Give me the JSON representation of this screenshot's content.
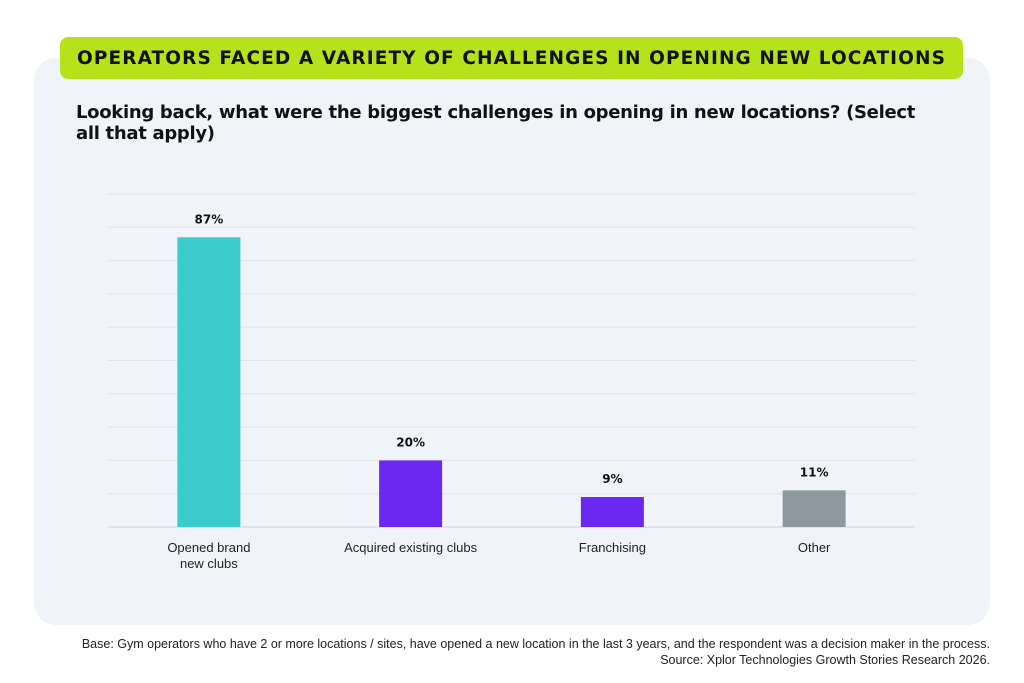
{
  "banner": {
    "title": "OPERATORS FACED A VARIETY OF CHALLENGES IN OPENING NEW LOCATIONS"
  },
  "question": {
    "text": "Looking back, what were the biggest challenges in opening in new locations? (Select all that apply)"
  },
  "footnote": {
    "base": "Base: Gym operators who have 2 or more locations / sites, have opened a new location in the last 3 years, and the respondent was a decision maker in the process.",
    "source": "Source: Xplor Technologies Growth Stories Research 2026."
  },
  "colors": {
    "banner": "#b6e21c",
    "panel": "#f0f4f8",
    "teal": "#3ecbcb",
    "purple": "#6a28f0",
    "gray": "#8e989f"
  },
  "chart_data": {
    "type": "bar",
    "title": "",
    "xlabel": "",
    "ylabel": "",
    "ylim": [
      0,
      100
    ],
    "grid": true,
    "legend": "none",
    "categories": [
      "Opened brand new clubs",
      "Acquired existing clubs",
      "Franchising",
      "Other"
    ],
    "category_lines": [
      [
        "Opened brand",
        "new clubs"
      ],
      [
        "Acquired existing clubs"
      ],
      [
        "Franchising"
      ],
      [
        "Other"
      ]
    ],
    "values": [
      87,
      20,
      9,
      11
    ],
    "value_labels": [
      "87%",
      "20%",
      "9%",
      "11%"
    ],
    "bar_colors": [
      "#3ecbcb",
      "#6a28f0",
      "#6a28f0",
      "#8e989f"
    ]
  }
}
